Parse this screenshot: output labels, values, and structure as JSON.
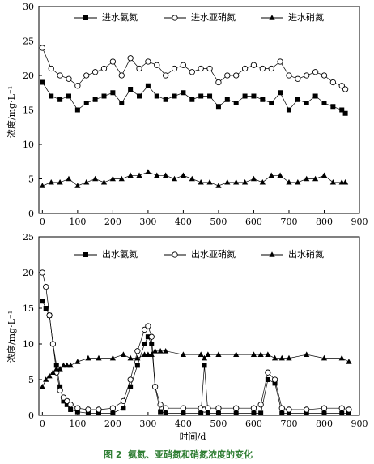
{
  "caption": {
    "label": "图 2",
    "text": "氨氮、亚硝氮和硝氮浓度的变化"
  },
  "colors": {
    "ink": "#000000",
    "caption": "#2e7d32"
  },
  "chart_data": [
    {
      "type": "line",
      "title": "",
      "xlabel": "",
      "ylabel": "浓度/mg·L⁻¹",
      "xlim": [
        -10,
        900
      ],
      "ylim": [
        0,
        30
      ],
      "xticks": [
        0,
        100,
        200,
        300,
        400,
        500,
        600,
        700,
        800,
        900
      ],
      "yticks": [
        0,
        5,
        10,
        15,
        20,
        25,
        30
      ],
      "grid": false,
      "legend": "top",
      "series": [
        {
          "name": "进水氨氮",
          "marker": "square-filled",
          "x": [
            0,
            25,
            50,
            75,
            100,
            125,
            150,
            175,
            200,
            225,
            250,
            275,
            300,
            325,
            350,
            375,
            400,
            425,
            450,
            475,
            500,
            525,
            550,
            575,
            600,
            625,
            650,
            675,
            700,
            725,
            750,
            775,
            800,
            825,
            850,
            860
          ],
          "values": [
            19,
            17,
            16.5,
            17,
            15,
            16,
            16.5,
            17,
            17.5,
            16,
            18,
            17,
            18.5,
            17,
            16.5,
            17,
            17.5,
            16.5,
            17,
            17,
            15.5,
            16.5,
            16,
            17,
            17,
            16.5,
            16,
            17.5,
            15,
            16.5,
            16,
            17,
            16,
            15.5,
            15,
            14.5
          ]
        },
        {
          "name": "进水亚硝氮",
          "marker": "circle-open",
          "x": [
            0,
            25,
            50,
            75,
            100,
            125,
            150,
            175,
            200,
            225,
            250,
            275,
            300,
            325,
            350,
            375,
            400,
            425,
            450,
            475,
            500,
            525,
            550,
            575,
            600,
            625,
            650,
            675,
            700,
            725,
            750,
            775,
            800,
            825,
            850,
            860
          ],
          "values": [
            24,
            21,
            20,
            19.5,
            18.5,
            20,
            20.5,
            21,
            22,
            20,
            22.5,
            21,
            22,
            21.5,
            20,
            21,
            21.5,
            20.5,
            21,
            21,
            19,
            20,
            20,
            21,
            21.5,
            21,
            21,
            22,
            20,
            19.5,
            20,
            20.5,
            20,
            19,
            18.5,
            18
          ]
        },
        {
          "name": "进水硝氮",
          "marker": "triangle-filled",
          "x": [
            0,
            25,
            50,
            75,
            100,
            125,
            150,
            175,
            200,
            225,
            250,
            275,
            300,
            325,
            350,
            375,
            400,
            425,
            450,
            475,
            500,
            525,
            550,
            575,
            600,
            625,
            650,
            675,
            700,
            725,
            750,
            775,
            800,
            825,
            850,
            860
          ],
          "values": [
            4,
            4.5,
            4.5,
            5,
            4,
            4.5,
            5,
            4.5,
            5,
            5,
            5.5,
            5.5,
            6,
            5.5,
            5.5,
            5,
            5.5,
            5,
            4.5,
            4.5,
            4,
            4.5,
            4.5,
            4.5,
            5,
            4.5,
            5.5,
            5.5,
            4.5,
            4.5,
            5,
            5,
            5.5,
            4.5,
            4.5,
            4.5
          ]
        }
      ]
    },
    {
      "type": "line",
      "title": "",
      "xlabel": "时间/d",
      "ylabel": "浓度/mg·L⁻¹",
      "xlim": [
        -10,
        900
      ],
      "ylim": [
        0,
        25
      ],
      "xticks": [
        0,
        100,
        200,
        300,
        400,
        500,
        600,
        700,
        800,
        900
      ],
      "yticks": [
        0,
        5,
        10,
        15,
        20,
        25
      ],
      "grid": false,
      "legend": "top",
      "series": [
        {
          "name": "出水氨氮",
          "marker": "square-filled",
          "x": [
            0,
            10,
            20,
            30,
            40,
            50,
            60,
            70,
            80,
            100,
            130,
            160,
            200,
            230,
            250,
            270,
            290,
            300,
            310,
            320,
            335,
            350,
            400,
            450,
            460,
            470,
            500,
            550,
            600,
            620,
            640,
            660,
            680,
            700,
            750,
            800,
            850,
            870
          ],
          "values": [
            16,
            15,
            14,
            10,
            7,
            4,
            2,
            1.5,
            0.8,
            0.5,
            0.3,
            0.3,
            0.3,
            1,
            4,
            7,
            10,
            11,
            10,
            4,
            0.5,
            0.3,
            0.3,
            0.3,
            7,
            0.3,
            0.3,
            0.3,
            0.3,
            0.3,
            5,
            4.5,
            0.3,
            0.3,
            0.3,
            0.3,
            0.3,
            0.3
          ]
        },
        {
          "name": "出水亚硝氮",
          "marker": "circle-open",
          "x": [
            0,
            10,
            20,
            30,
            40,
            50,
            60,
            70,
            80,
            100,
            130,
            160,
            200,
            230,
            250,
            270,
            290,
            300,
            310,
            320,
            335,
            350,
            400,
            450,
            460,
            470,
            500,
            550,
            600,
            620,
            640,
            660,
            680,
            700,
            750,
            800,
            850,
            870
          ],
          "values": [
            20,
            18,
            14,
            10,
            6,
            3.5,
            2.5,
            2,
            1.5,
            1,
            0.8,
            0.8,
            1,
            2,
            5,
            9,
            12,
            12.5,
            11,
            4,
            1.5,
            1,
            1,
            1,
            0.8,
            1,
            1,
            1,
            1,
            1.5,
            6,
            5,
            1,
            0.8,
            0.8,
            1,
            1,
            0.8
          ]
        },
        {
          "name": "出水硝氮",
          "marker": "triangle-filled",
          "x": [
            0,
            10,
            20,
            30,
            40,
            50,
            60,
            70,
            80,
            100,
            130,
            160,
            200,
            230,
            250,
            270,
            290,
            300,
            310,
            320,
            335,
            350,
            400,
            450,
            460,
            470,
            500,
            550,
            600,
            620,
            640,
            660,
            680,
            700,
            750,
            800,
            850,
            870
          ],
          "values": [
            4,
            5,
            5.5,
            6,
            6.5,
            6.5,
            7,
            7,
            7,
            7.5,
            8,
            8,
            8,
            8.5,
            8,
            8,
            8.5,
            8.5,
            8.5,
            9,
            9,
            9,
            8.5,
            8.5,
            8,
            8.5,
            8.5,
            8.5,
            8.5,
            8.5,
            8.5,
            8,
            8,
            8,
            8.5,
            8,
            8,
            7.5
          ]
        }
      ]
    }
  ]
}
